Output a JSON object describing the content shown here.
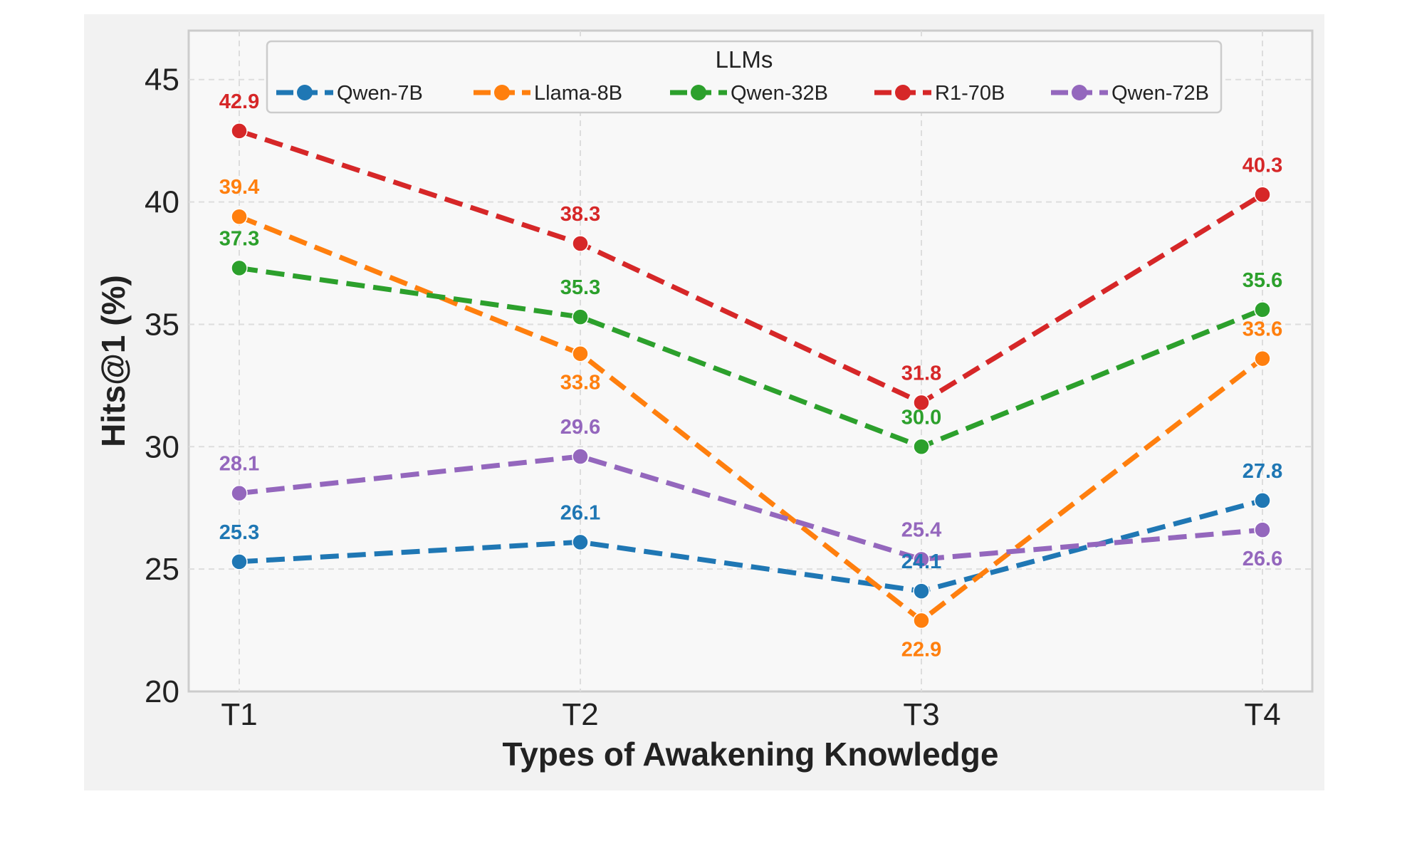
{
  "chart_data": {
    "type": "line",
    "title": "",
    "xlabel": "Types of Awakening Knowledge",
    "ylabel": "Hits@1 (%)",
    "categories": [
      "T1",
      "T2",
      "T3",
      "T4"
    ],
    "ylim": [
      20,
      47
    ],
    "yticks": [
      20,
      25,
      30,
      35,
      40,
      45
    ],
    "grid": true,
    "line_style": "dashed",
    "marker": "circle",
    "legend": {
      "title": "LLMs",
      "placement": "top-center",
      "columns": 5
    },
    "series": [
      {
        "name": "Qwen-7B",
        "color": "#1f77b4",
        "values": [
          25.3,
          26.1,
          24.1,
          27.8
        ],
        "label_position": [
          "above",
          "above",
          "above",
          "above"
        ]
      },
      {
        "name": "Llama-8B",
        "color": "#ff7f0e",
        "values": [
          39.4,
          33.8,
          22.9,
          33.6
        ],
        "label_position": [
          "above",
          "below",
          "below",
          "above"
        ]
      },
      {
        "name": "Qwen-32B",
        "color": "#2ca02c",
        "values": [
          37.3,
          35.3,
          30.0,
          35.6
        ],
        "label_position": [
          "above",
          "above",
          "above",
          "above"
        ]
      },
      {
        "name": "R1-70B",
        "color": "#d62728",
        "values": [
          42.9,
          38.3,
          31.8,
          40.3
        ],
        "label_position": [
          "above",
          "above",
          "above",
          "above"
        ]
      },
      {
        "name": "Qwen-72B",
        "color": "#9467bd",
        "values": [
          28.1,
          29.6,
          25.4,
          26.6
        ],
        "label_position": [
          "above",
          "above",
          "above",
          "below"
        ]
      }
    ]
  }
}
